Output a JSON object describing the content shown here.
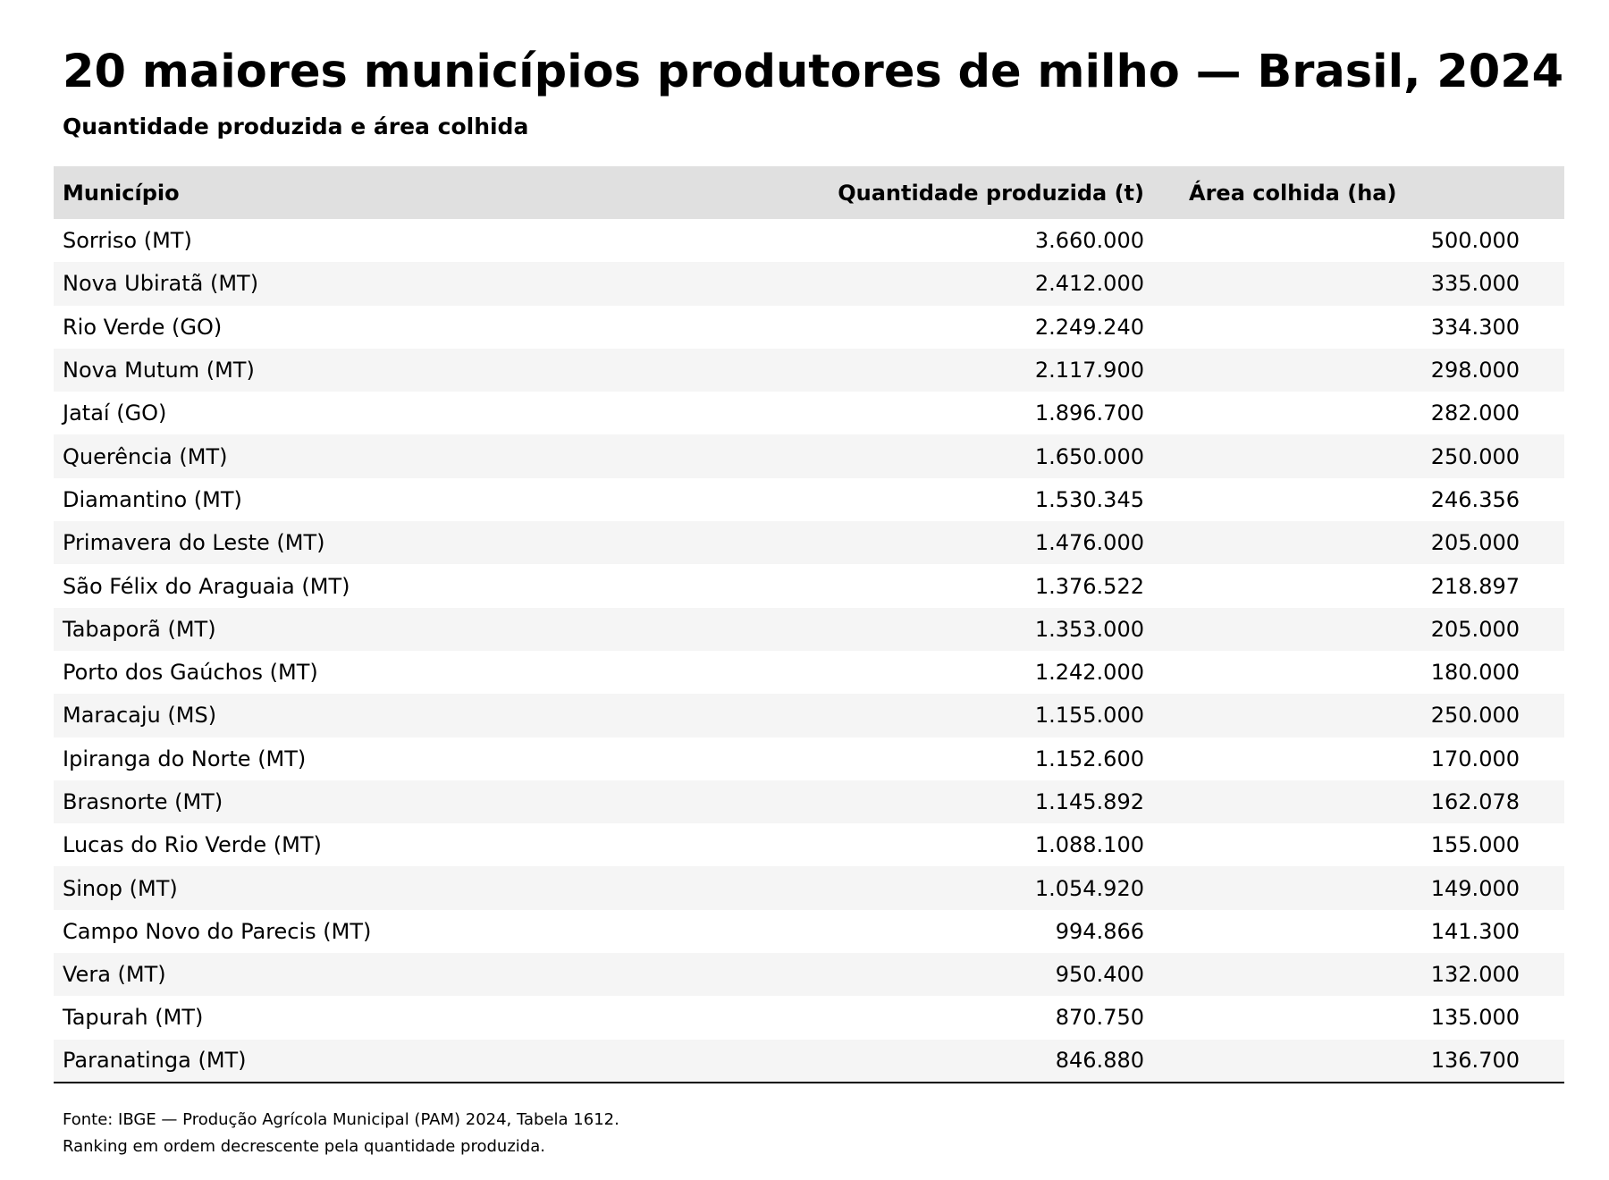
{
  "chart_data": {
    "type": "table",
    "title": "20 maiores municípios produtores de milho — Brasil, 2024",
    "subtitle": "Quantidade produzida e área colhida",
    "columns": [
      "Município",
      "Quantidade produzida (t)",
      "Área colhida (ha)"
    ],
    "rows": [
      {
        "municipio": "Sorriso (MT)",
        "quantidade": "3.660.000",
        "area": "500.000"
      },
      {
        "municipio": "Nova Ubiratã (MT)",
        "quantidade": "2.412.000",
        "area": "335.000"
      },
      {
        "municipio": "Rio Verde (GO)",
        "quantidade": "2.249.240",
        "area": "334.300"
      },
      {
        "municipio": "Nova Mutum (MT)",
        "quantidade": "2.117.900",
        "area": "298.000"
      },
      {
        "municipio": "Jataí (GO)",
        "quantidade": "1.896.700",
        "area": "282.000"
      },
      {
        "municipio": "Querência (MT)",
        "quantidade": "1.650.000",
        "area": "250.000"
      },
      {
        "municipio": "Diamantino (MT)",
        "quantidade": "1.530.345",
        "area": "246.356"
      },
      {
        "municipio": "Primavera do Leste (MT)",
        "quantidade": "1.476.000",
        "area": "205.000"
      },
      {
        "municipio": "São Félix do Araguaia (MT)",
        "quantidade": "1.376.522",
        "area": "218.897"
      },
      {
        "municipio": "Tabaporã (MT)",
        "quantidade": "1.353.000",
        "area": "205.000"
      },
      {
        "municipio": "Porto dos Gaúchos (MT)",
        "quantidade": "1.242.000",
        "area": "180.000"
      },
      {
        "municipio": "Maracaju (MS)",
        "quantidade": "1.155.000",
        "area": "250.000"
      },
      {
        "municipio": "Ipiranga do Norte (MT)",
        "quantidade": "1.152.600",
        "area": "170.000"
      },
      {
        "municipio": "Brasnorte (MT)",
        "quantidade": "1.145.892",
        "area": "162.078"
      },
      {
        "municipio": "Lucas do Rio Verde (MT)",
        "quantidade": "1.088.100",
        "area": "155.000"
      },
      {
        "municipio": "Sinop (MT)",
        "quantidade": "1.054.920",
        "area": "149.000"
      },
      {
        "municipio": "Campo Novo do Parecis (MT)",
        "quantidade": "994.866",
        "area": "141.300"
      },
      {
        "municipio": "Vera (MT)",
        "quantidade": "950.400",
        "area": "132.000"
      },
      {
        "municipio": "Tapurah (MT)",
        "quantidade": "870.750",
        "area": "135.000"
      },
      {
        "municipio": "Paranatinga (MT)",
        "quantidade": "846.880",
        "area": "136.700"
      }
    ],
    "footnotes": [
      "Fonte: IBGE — Produção Agrícola Municipal (PAM) 2024, Tabela 1612.",
      "Ranking em ordem decrescente pela quantidade produzida."
    ],
    "colors": {
      "header_background": "#e0e0e0",
      "stripe_background": "#f5f5f5",
      "rule": "#000000"
    }
  }
}
